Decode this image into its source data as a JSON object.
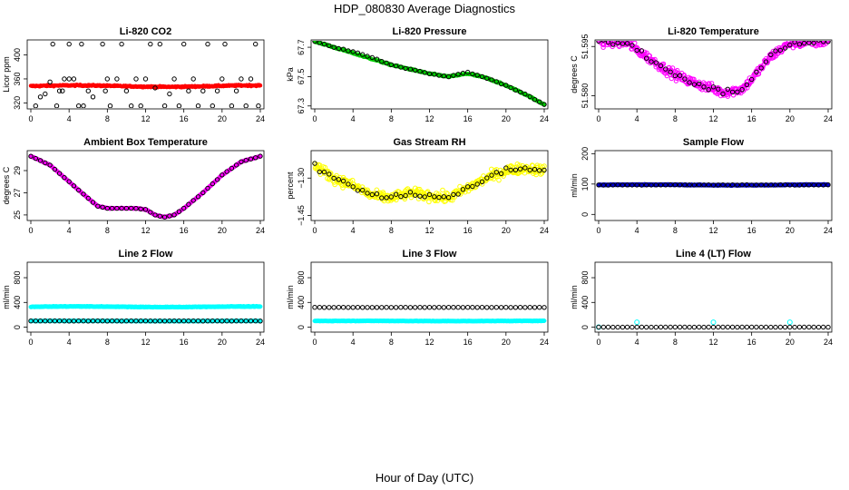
{
  "title": "HDP_080830  Average Diagnostics",
  "xlabel": "Hour of Day (UTC)",
  "colors": {
    "red": "#ff0000",
    "green": "#00cc00",
    "magenta": "#ff00ff",
    "yellow": "#ffff00",
    "blue": "#0000cc",
    "cyan": "#00ffff",
    "black": "#000000"
  },
  "chart_data": [
    {
      "type": "scatter",
      "title": "Li-820 CO2",
      "ylabel": "Licor ppm",
      "xlim": [
        0,
        24
      ],
      "ylim": [
        310,
        425
      ],
      "yticks": [
        320,
        360,
        400
      ],
      "yticklabels": [
        "320",
        "360",
        "400"
      ],
      "series": [
        {
          "name": "raw",
          "color": "#ff0000",
          "pattern": "band",
          "base": 348,
          "amp": 1.2,
          "noise": 2,
          "size": 2
        },
        {
          "name": "avg",
          "color": "#000000",
          "open": true,
          "points": [
            [
              0.5,
              315
            ],
            [
              1,
              330
            ],
            [
              1.5,
              335
            ],
            [
              2,
              355
            ],
            [
              2.3,
              418
            ],
            [
              2.7,
              315
            ],
            [
              3,
              340
            ],
            [
              3.3,
              340
            ],
            [
              3.5,
              360
            ],
            [
              4,
              418
            ],
            [
              4,
              360
            ],
            [
              4.5,
              360
            ],
            [
              5,
              315
            ],
            [
              5.3,
              418
            ],
            [
              5.5,
              315
            ],
            [
              6,
              340
            ],
            [
              6.5,
              330
            ],
            [
              7.5,
              418
            ],
            [
              7.8,
              340
            ],
            [
              8,
              360
            ],
            [
              8.3,
              315
            ],
            [
              9,
              360
            ],
            [
              9.5,
              418
            ],
            [
              10,
              340
            ],
            [
              10.5,
              315
            ],
            [
              11,
              360
            ],
            [
              11.5,
              315
            ],
            [
              12,
              360
            ],
            [
              12.5,
              418
            ],
            [
              13,
              345
            ],
            [
              13.5,
              418
            ],
            [
              14,
              315
            ],
            [
              14.5,
              335
            ],
            [
              15,
              360
            ],
            [
              15.5,
              315
            ],
            [
              16,
              418
            ],
            [
              16.5,
              340
            ],
            [
              17,
              360
            ],
            [
              17.5,
              315
            ],
            [
              18,
              340
            ],
            [
              18.5,
              418
            ],
            [
              19,
              315
            ],
            [
              19.5,
              340
            ],
            [
              20,
              360
            ],
            [
              20.3,
              418
            ],
            [
              21,
              315
            ],
            [
              21.5,
              340
            ],
            [
              22,
              360
            ],
            [
              22.5,
              315
            ],
            [
              23,
              360
            ],
            [
              23.5,
              418
            ],
            [
              23.8,
              315
            ]
          ]
        }
      ]
    },
    {
      "type": "scatter",
      "title": "Li-820 Pressure",
      "ylabel": "kPa",
      "xlim": [
        0,
        24
      ],
      "ylim": [
        67.28,
        67.75
      ],
      "yticks": [
        67.3,
        67.5,
        67.7
      ],
      "yticklabels": [
        "67.3",
        "67.5",
        "67.7"
      ],
      "series": [
        {
          "name": "raw",
          "color": "#00cc00",
          "pattern": "curve",
          "curve": [
            [
              0,
              67.74
            ],
            [
              2,
              67.7
            ],
            [
              4,
              67.66
            ],
            [
              6,
              67.62
            ],
            [
              8,
              67.58
            ],
            [
              10,
              67.55
            ],
            [
              12,
              67.52
            ],
            [
              14,
              67.5
            ],
            [
              16,
              67.52
            ],
            [
              18,
              67.49
            ],
            [
              20,
              67.44
            ],
            [
              22,
              67.38
            ],
            [
              24,
              67.31
            ]
          ],
          "noise": 0.008,
          "size": 2
        },
        {
          "name": "avg",
          "color": "#000000",
          "open": true,
          "pattern": "curve-avg",
          "curve": [
            [
              0,
              67.74
            ],
            [
              2,
              67.7
            ],
            [
              4,
              67.67
            ],
            [
              6,
              67.63
            ],
            [
              8,
              67.58
            ],
            [
              10,
              67.55
            ],
            [
              12,
              67.52
            ],
            [
              14,
              67.5
            ],
            [
              16,
              67.53
            ],
            [
              18,
              67.49
            ],
            [
              20,
              67.44
            ],
            [
              22,
              67.38
            ],
            [
              24,
              67.31
            ]
          ],
          "step": 0.5,
          "noise": 0.004
        }
      ]
    },
    {
      "type": "scatter",
      "title": "Li-820 Temperature",
      "ylabel": "degrees C",
      "xlim": [
        0,
        24
      ],
      "ylim": [
        51.576,
        51.597
      ],
      "yticks": [
        51.58,
        51.595
      ],
      "yticklabels": [
        "51.580",
        "51.595"
      ],
      "series": [
        {
          "name": "raw",
          "color": "#ff00ff",
          "open": true,
          "pattern": "curve",
          "curve": [
            [
              0,
              51.5965
            ],
            [
              3,
              51.596
            ],
            [
              5,
              51.592
            ],
            [
              7,
              51.588
            ],
            [
              9,
              51.585
            ],
            [
              11,
              51.583
            ],
            [
              13,
              51.581
            ],
            [
              15,
              51.582
            ],
            [
              16,
              51.585
            ],
            [
              18,
              51.592
            ],
            [
              20,
              51.596
            ],
            [
              24,
              51.5965
            ]
          ],
          "noise": 0.0025,
          "size": 2.2
        },
        {
          "name": "avg",
          "color": "#000000",
          "open": true,
          "pattern": "curve-avg",
          "curve": [
            [
              0,
              51.5965
            ],
            [
              3,
              51.596
            ],
            [
              5,
              51.592
            ],
            [
              7,
              51.588
            ],
            [
              9,
              51.585
            ],
            [
              11,
              51.583
            ],
            [
              13,
              51.581
            ],
            [
              15,
              51.582
            ],
            [
              16,
              51.585
            ],
            [
              18,
              51.592
            ],
            [
              20,
              51.596
            ],
            [
              24,
              51.5965
            ]
          ],
          "step": 0.5,
          "noise": 0.0015
        }
      ]
    },
    {
      "type": "scatter",
      "title": "Ambient Box Temperature",
      "ylabel": "degrees C",
      "xlim": [
        0,
        24
      ],
      "ylim": [
        24.5,
        30.8
      ],
      "yticks": [
        25,
        27,
        29
      ],
      "yticklabels": [
        "25",
        "27",
        "29"
      ],
      "series": [
        {
          "name": "raw",
          "color": "#ff00ff",
          "pattern": "curve",
          "curve": [
            [
              0,
              30.3
            ],
            [
              2,
              29.5
            ],
            [
              4,
              28
            ],
            [
              6,
              26.5
            ],
            [
              7,
              25.8
            ],
            [
              8,
              25.6
            ],
            [
              11,
              25.6
            ],
            [
              12,
              25.5
            ],
            [
              13,
              25
            ],
            [
              14,
              24.8
            ],
            [
              15,
              25
            ],
            [
              16,
              25.6
            ],
            [
              18,
              27
            ],
            [
              20,
              28.6
            ],
            [
              22,
              29.8
            ],
            [
              24,
              30.3
            ]
          ],
          "noise": 0.05,
          "size": 2.2
        },
        {
          "name": "avg",
          "color": "#000000",
          "open": true,
          "pattern": "curve-avg",
          "curve": [
            [
              0,
              30.3
            ],
            [
              2,
              29.5
            ],
            [
              4,
              28
            ],
            [
              6,
              26.5
            ],
            [
              7,
              25.8
            ],
            [
              8,
              25.6
            ],
            [
              11,
              25.6
            ],
            [
              12,
              25.5
            ],
            [
              13,
              25
            ],
            [
              14,
              24.8
            ],
            [
              15,
              25
            ],
            [
              16,
              25.6
            ],
            [
              18,
              27
            ],
            [
              20,
              28.6
            ],
            [
              22,
              29.8
            ],
            [
              24,
              30.3
            ]
          ],
          "step": 0.5,
          "noise": 0.02
        }
      ]
    },
    {
      "type": "scatter",
      "title": "Gas Stream RH",
      "ylabel": "percent",
      "xlim": [
        0,
        24
      ],
      "ylim": [
        -1.47,
        -1.19
      ],
      "yticks": [
        -1.45,
        -1.3
      ],
      "yticklabels": [
        "−1.45",
        "−1.30"
      ],
      "series": [
        {
          "name": "raw",
          "color": "#ffff00",
          "open": true,
          "pattern": "curve",
          "curve": [
            [
              0,
              -1.25
            ],
            [
              2,
              -1.3
            ],
            [
              4,
              -1.33
            ],
            [
              6,
              -1.37
            ],
            [
              8,
              -1.38
            ],
            [
              10,
              -1.36
            ],
            [
              12,
              -1.37
            ],
            [
              14,
              -1.38
            ],
            [
              16,
              -1.34
            ],
            [
              18,
              -1.3
            ],
            [
              20,
              -1.27
            ],
            [
              22,
              -1.26
            ],
            [
              24,
              -1.27
            ]
          ],
          "noise": 0.035,
          "size": 2.3
        },
        {
          "name": "avg",
          "color": "#000000",
          "open": true,
          "pattern": "curve-avg",
          "curve": [
            [
              0,
              -1.25
            ],
            [
              2,
              -1.3
            ],
            [
              4,
              -1.33
            ],
            [
              6,
              -1.37
            ],
            [
              8,
              -1.38
            ],
            [
              10,
              -1.36
            ],
            [
              12,
              -1.37
            ],
            [
              14,
              -1.38
            ],
            [
              16,
              -1.34
            ],
            [
              18,
              -1.3
            ],
            [
              20,
              -1.27
            ],
            [
              22,
              -1.26
            ],
            [
              24,
              -1.27
            ]
          ],
          "step": 0.5,
          "noise": 0.02
        }
      ]
    },
    {
      "type": "scatter",
      "title": "Sample Flow",
      "ylabel": "ml/min",
      "xlim": [
        0,
        24
      ],
      "ylim": [
        -20,
        210
      ],
      "yticks": [
        0,
        100,
        200
      ],
      "yticklabels": [
        "0",
        "100",
        "200"
      ],
      "series": [
        {
          "name": "raw",
          "color": "#0000cc",
          "pattern": "band",
          "base": 97,
          "amp": 1,
          "noise": 2,
          "size": 2.2
        },
        {
          "name": "avg",
          "color": "#000000",
          "open": true,
          "pattern": "curve-avg",
          "curve": [
            [
              0,
              97
            ],
            [
              24,
              97
            ]
          ],
          "step": 0.5,
          "noise": 1
        }
      ]
    },
    {
      "type": "scatter",
      "title": "Line 2 Flow",
      "ylabel": "ml/min",
      "xlim": [
        0,
        24
      ],
      "ylim": [
        -80,
        1050
      ],
      "yticks": [
        0,
        400,
        800
      ],
      "yticklabels": [
        "0",
        "400",
        "800"
      ],
      "series": [
        {
          "name": "raw-high",
          "color": "#00ffff",
          "pattern": "band",
          "base": 330,
          "amp": 5,
          "noise": 8,
          "size": 2.2
        },
        {
          "name": "raw-low",
          "color": "#00ffff",
          "pattern": "band",
          "base": 100,
          "amp": 1,
          "noise": 3,
          "size": 2.2
        },
        {
          "name": "avg",
          "color": "#000000",
          "open": true,
          "pattern": "curve-avg",
          "curve": [
            [
              0,
              100
            ],
            [
              24,
              100
            ]
          ],
          "step": 0.5,
          "noise": 1
        }
      ]
    },
    {
      "type": "scatter",
      "title": "Line 3 Flow",
      "ylabel": "ml/min",
      "xlim": [
        0,
        24
      ],
      "ylim": [
        -80,
        1050
      ],
      "yticks": [
        0,
        400,
        800
      ],
      "yticklabels": [
        "0",
        "400",
        "800"
      ],
      "series": [
        {
          "name": "raw-low",
          "color": "#00ffff",
          "pattern": "band",
          "base": 100,
          "amp": 1,
          "noise": 5,
          "size": 2.2
        },
        {
          "name": "avg",
          "color": "#000000",
          "open": true,
          "pattern": "curve-avg",
          "curve": [
            [
              0,
              320
            ],
            [
              24,
              320
            ]
          ],
          "step": 0.5,
          "noise": 2
        }
      ]
    },
    {
      "type": "scatter",
      "title": "Line 4 (LT) Flow",
      "ylabel": "ml/min",
      "xlim": [
        0,
        24
      ],
      "ylim": [
        -80,
        1050
      ],
      "yticks": [
        0,
        400,
        800
      ],
      "yticklabels": [
        "0",
        "400",
        "800"
      ],
      "series": [
        {
          "name": "raw",
          "color": "#00ffff",
          "open": true,
          "points": [
            [
              0,
              0
            ],
            [
              4,
              80
            ],
            [
              12,
              80
            ],
            [
              20,
              80
            ]
          ],
          "size": 2.5
        },
        {
          "name": "avg",
          "color": "#000000",
          "open": true,
          "pattern": "curve-avg",
          "curve": [
            [
              0,
              0
            ],
            [
              24,
              0
            ]
          ],
          "step": 0.5,
          "noise": 0.5
        }
      ]
    }
  ]
}
